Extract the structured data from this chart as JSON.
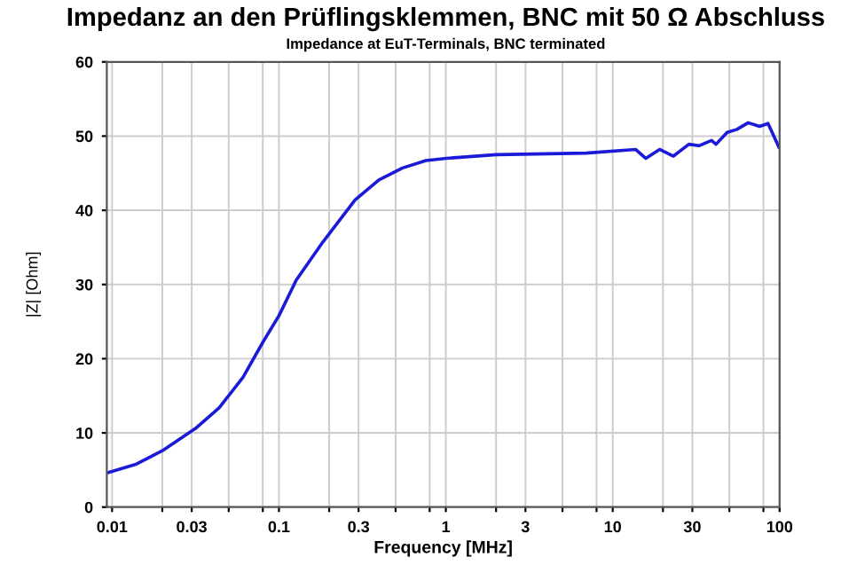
{
  "chart_data": {
    "type": "line",
    "title": "Impedanz an den Prüflingsklemmen, BNC mit 50 Ω Abschluss",
    "subtitle": "Impedance at EuT-Terminals, BNC terminated",
    "xlabel": "Frequency [MHz]",
    "ylabel": "|Z| [Ohm]",
    "log": "x",
    "grid": true,
    "marker": "none",
    "line_style": "solid",
    "xlim": [
      0.0093,
      100
    ],
    "ylim": [
      0,
      60
    ],
    "yticks": [
      0,
      10,
      20,
      30,
      40,
      50,
      60
    ],
    "xticks": [
      0.01,
      {
        "value": 0.02,
        "label": null
      },
      0.03,
      {
        "value": 0.05,
        "label": null
      },
      {
        "value": 0.08,
        "label": null
      },
      0.1,
      {
        "value": 0.2,
        "label": null
      },
      0.3,
      {
        "value": 0.5,
        "label": null
      },
      {
        "value": 0.8,
        "label": null
      },
      1,
      {
        "value": 2,
        "label": null
      },
      3,
      {
        "value": 5,
        "label": null
      },
      {
        "value": 8,
        "label": null
      },
      10,
      {
        "value": 20,
        "label": null
      },
      30,
      {
        "value": 50,
        "label": null
      },
      {
        "value": 80,
        "label": null
      },
      100
    ],
    "series": [
      {
        "color": "#1a1ad8",
        "x": [
          0.0093,
          0.014,
          0.02,
          0.0316,
          0.0439,
          0.0609,
          0.08,
          0.1,
          0.127,
          0.183,
          0.286,
          0.397,
          0.55,
          0.76,
          1.01,
          2.0,
          6.9,
          13.7,
          15.8,
          19.1,
          23.1,
          28.6,
          32.8,
          39.1,
          41.6,
          48.5,
          55.5,
          64.8,
          75.8,
          85.3,
          99
        ],
        "values": [
          4.6,
          5.8,
          7.6,
          10.6,
          13.4,
          17.5,
          22.2,
          25.8,
          30.6,
          35.7,
          41.4,
          44.1,
          45.7,
          46.7,
          47.0,
          47.5,
          47.7,
          48.2,
          47.0,
          48.2,
          47.3,
          48.9,
          48.7,
          49.4,
          48.9,
          50.5,
          50.9,
          51.8,
          51.3,
          51.7,
          48.5
        ]
      }
    ]
  }
}
